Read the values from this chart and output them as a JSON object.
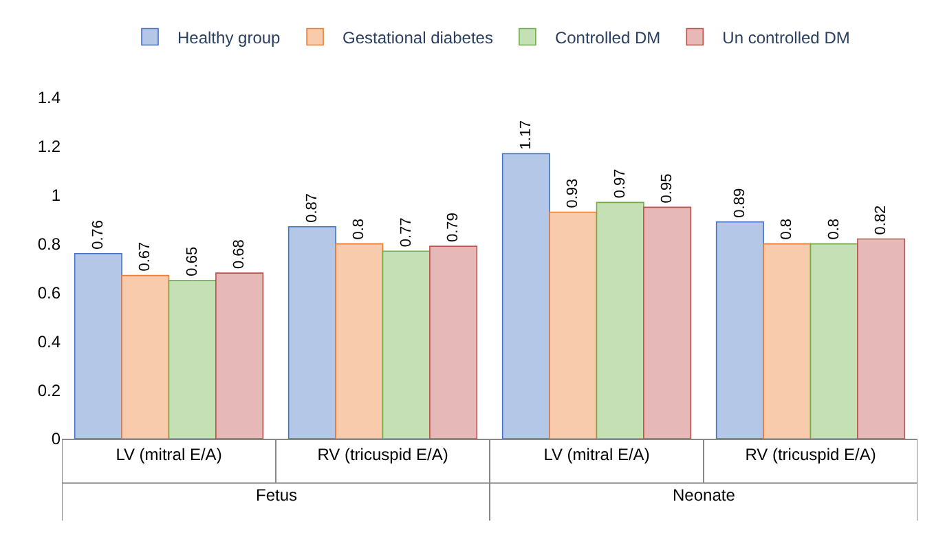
{
  "chart_data": {
    "type": "bar",
    "categories": [
      "LV (mitral E/A)",
      "RV (tricuspid E/A)",
      "LV (mitral E/A)",
      "RV (tricuspid E/A)"
    ],
    "series": [
      {
        "name": "Healthy group",
        "color": "#b4c7e7",
        "values": [
          0.76,
          0.87,
          1.17,
          0.89
        ]
      },
      {
        "name": "Gestational diabetes",
        "color": "#f8cbad",
        "values": [
          0.67,
          0.8,
          0.93,
          0.8
        ]
      },
      {
        "name": "Controlled DM",
        "color": "#c5e0b4",
        "values": [
          0.65,
          0.77,
          0.97,
          0.8
        ]
      },
      {
        "name": "Un controlled DM",
        "color": "#e6b9b8",
        "values": [
          0.68,
          0.79,
          0.95,
          0.82
        ]
      }
    ],
    "annotations": [
      "Fetus",
      "Neonate"
    ],
    "ylim": [
      0,
      1.4
    ],
    "yticks": [
      0,
      0.2,
      0.4,
      0.6,
      0.8,
      1,
      1.2,
      1.4
    ],
    "data_labels": true,
    "legend": "top"
  }
}
